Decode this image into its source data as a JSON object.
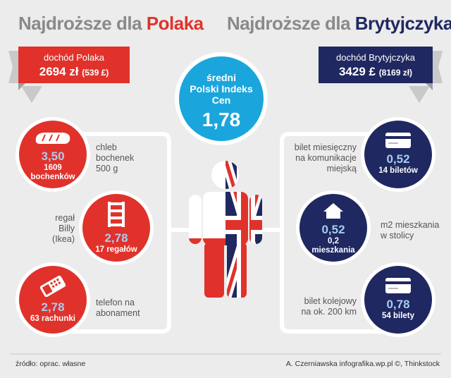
{
  "headings": {
    "left_prefix": "Najdroższe dla ",
    "left_highlight": "Polaka",
    "right_prefix": "Najdroższe dla ",
    "right_highlight": "Brytyjczyka"
  },
  "colors": {
    "red": "#e0322b",
    "navy": "#1f2860",
    "cyan": "#1aa6dc",
    "gray": "#8a8a8a",
    "value_blue": "#a9ccf0"
  },
  "left_banner": {
    "label": "dochód Polaka",
    "value": "2694 zł",
    "value_small": "(539 £)"
  },
  "right_banner": {
    "label": "dochód Brytyjczyka",
    "value": "3429 £",
    "value_small": "(8169 zł)"
  },
  "index": {
    "line1": "średni",
    "line2": "Polski Indeks",
    "line3": "Cen",
    "value": "1,78"
  },
  "left_items": [
    {
      "icon": "bread-icon",
      "value": "3,50",
      "sub1": "1609",
      "sub2": "bochenków",
      "desc1": "chleb",
      "desc2": "bochenek",
      "desc3": "500 g"
    },
    {
      "icon": "shelf-icon",
      "value": "2,78",
      "sub1": "17 regałów",
      "sub2": "",
      "desc1": "regał",
      "desc2": "Billy",
      "desc3": "(Ikea)"
    },
    {
      "icon": "phone-icon",
      "value": "2,78",
      "sub1": "63 rachunki",
      "sub2": "",
      "desc1": "telefon na",
      "desc2": "abonament",
      "desc3": ""
    }
  ],
  "right_items": [
    {
      "icon": "ticket-card-icon",
      "value": "0,52",
      "sub1": "14 biletów",
      "sub2": "",
      "desc1": "bilet miesięczny",
      "desc2": "na komunikacje",
      "desc3": "miejską"
    },
    {
      "icon": "house-icon",
      "value": "0,52",
      "sub1": "0,2",
      "sub2": "mieszkania",
      "desc1": "m2 mieszkania",
      "desc2": "w stolicy",
      "desc3": ""
    },
    {
      "icon": "ticket-card-icon",
      "value": "0,78",
      "sub1": "54 bilety",
      "sub2": "",
      "desc1": "bilet kolejowy",
      "desc2": "na ok. 200 km",
      "desc3": ""
    }
  ],
  "footer": {
    "source": "źródło: oprac. własne",
    "credit": "A. Czerniawska infografika.wp.pl ©, Thinkstock"
  }
}
